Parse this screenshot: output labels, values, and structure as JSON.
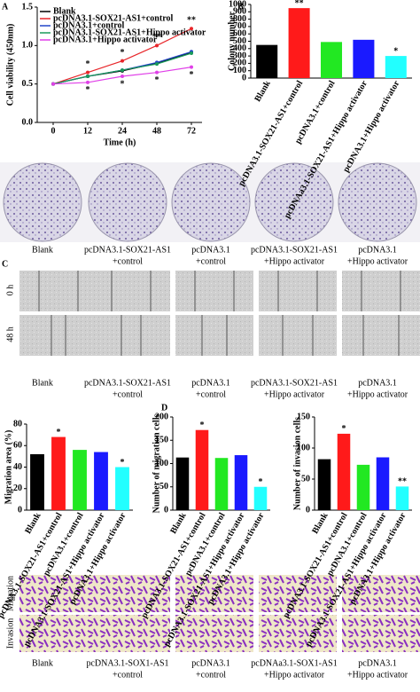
{
  "panels": [
    "A",
    "B",
    "C",
    "D"
  ],
  "chart_data": [
    {
      "type": "line",
      "xlabel": "Time (h)",
      "ylabel": "Cell viability (450nm)",
      "categories": [
        "0",
        "12",
        "24",
        "48",
        "72"
      ],
      "ylim": [
        0,
        1.5
      ],
      "yticks": [
        {
          "value": 0,
          "label": "0.0"
        },
        {
          "value": 0.5,
          "label": "0.5"
        },
        {
          "value": 1,
          "label": "1.0"
        },
        {
          "value": 1.5,
          "label": "1.5"
        }
      ],
      "legend": "upper left",
      "series": [
        {
          "name": "Blank",
          "color": "#000000",
          "values": [
            0.5,
            0.6,
            0.67,
            0.77,
            0.91
          ]
        },
        {
          "name": "pcDNA3.1-SOX21-AS1+control",
          "color": "#e8262a",
          "values": [
            0.5,
            0.65,
            0.8,
            1.0,
            1.22
          ],
          "sig": [
            null,
            "*",
            "*",
            "**",
            "**"
          ]
        },
        {
          "name": "pcDNA3.1+control",
          "color": "#2346c8",
          "values": [
            0.5,
            0.6,
            0.68,
            0.78,
            0.92
          ]
        },
        {
          "name": "pcDNA3.1-SOX21-AS1+Hippo activator",
          "color": "#1a9a5a",
          "values": [
            0.5,
            0.6,
            0.68,
            0.76,
            0.9
          ]
        },
        {
          "name": "pcDNA3.1+Hippo activator",
          "color": "#e040e8",
          "values": [
            0.5,
            0.52,
            0.6,
            0.65,
            0.72
          ],
          "sig": [
            null,
            "*",
            "*",
            "*",
            "*"
          ]
        }
      ]
    },
    {
      "type": "bar",
      "ylabel": "Colony number",
      "ylim": [
        0,
        1000
      ],
      "yticks": [
        0,
        100,
        200,
        300,
        400,
        500,
        600,
        700,
        800,
        900,
        1000
      ],
      "categories": [
        "Blank",
        "pcDNA3.1-SOX21-AS1+control",
        "pcDNA3.1+control",
        "pcDNAa3.1-SOX21-AS1+Hippo activator",
        "pcDNA3.1+Hippo activator"
      ],
      "values": [
        450,
        950,
        490,
        520,
        300
      ],
      "colors": [
        "#000000",
        "#ff1a1a",
        "#22e822",
        "#1a1aff",
        "#22ffff"
      ],
      "sig": [
        null,
        "**",
        null,
        null,
        "*"
      ]
    },
    {
      "type": "bar",
      "ylabel": "Migration area (%)",
      "ylim": [
        0,
        80
      ],
      "yticks": [
        0,
        20,
        40,
        60,
        80
      ],
      "categories": [
        "Blank",
        "pcDNA3.1-SOX21-AS1+control",
        "pcDNA3.1+control",
        "pcDNA3.1-SOX21-AS1+Hippo activator",
        "pcDNA3.1+Hippo activator"
      ],
      "values": [
        52,
        68,
        56,
        54,
        40
      ],
      "colors": [
        "#000000",
        "#ff1a1a",
        "#22e822",
        "#1a1aff",
        "#22ffff"
      ],
      "sig": [
        null,
        "*",
        null,
        null,
        "*"
      ]
    },
    {
      "type": "bar",
      "ylabel": "Number of migration cells",
      "ylim": [
        0,
        200
      ],
      "yticks": [
        0,
        50,
        100,
        150,
        200
      ],
      "categories": [
        "Blank",
        "pcDNA3.1-SOX21-AS1+control",
        "pcDNA3.1+control",
        "pcDNA3.1-SOX21-AS1+Hippo activator",
        "pcDNA3.1+Hippo activator"
      ],
      "values": [
        113,
        172,
        112,
        118,
        50
      ],
      "colors": [
        "#000000",
        "#ff1a1a",
        "#22e822",
        "#1a1aff",
        "#22ffff"
      ],
      "sig": [
        null,
        "*",
        null,
        null,
        "*"
      ]
    },
    {
      "type": "bar",
      "ylabel": "Number of invasion cells",
      "ylim": [
        0,
        150
      ],
      "yticks": [
        0,
        50,
        100,
        150
      ],
      "categories": [
        "Blank",
        "pcDNA3.1-SOX21-AS1+control",
        "pcDNA3.1+control",
        "pcDNA3.1-SOX21-AS1+Hippo activator",
        "pcDNA3.1+Hippo activator"
      ],
      "values": [
        82,
        123,
        73,
        85,
        38
      ],
      "colors": [
        "#000000",
        "#ff1a1a",
        "#22e822",
        "#1a1aff",
        "#22ffff"
      ],
      "sig": [
        null,
        "*",
        null,
        null,
        "**"
      ]
    }
  ],
  "colony": {
    "labels": [
      [
        "Blank"
      ],
      [
        "pcDNA3.1-SOX21-AS1",
        "+control"
      ],
      [
        "pcDNA3.1",
        "+control"
      ],
      [
        "pcDNA3.1-SOX21-AS1",
        "+Hippo activator"
      ],
      [
        "pcDNA3.1",
        "+Hippo activator"
      ]
    ]
  },
  "wound": {
    "rows": [
      "0 h",
      "48 h"
    ],
    "labels": [
      [
        "Blank"
      ],
      [
        "pcDNA3.1-SOX21-AS1",
        "+control"
      ],
      [
        "pcDNA3.1",
        "+control"
      ],
      [
        "pcDNA3.1-SOX21-AS1",
        "+Hippo activator"
      ],
      [
        "pcDNA3.1",
        "+Hippo activator"
      ]
    ]
  },
  "transwell": {
    "rows": [
      "Migration",
      "Invasion"
    ],
    "labels": [
      [
        "Blank"
      ],
      [
        "pcDNA3.1-SOX1-AS1",
        "+control"
      ],
      [
        "pcDNA3.1",
        "+control"
      ],
      [
        "pcDNAa3.1-SOX1-AS1",
        "+Hippo activator"
      ],
      [
        "pcDNA3.1",
        "+Hippo activator"
      ]
    ]
  }
}
